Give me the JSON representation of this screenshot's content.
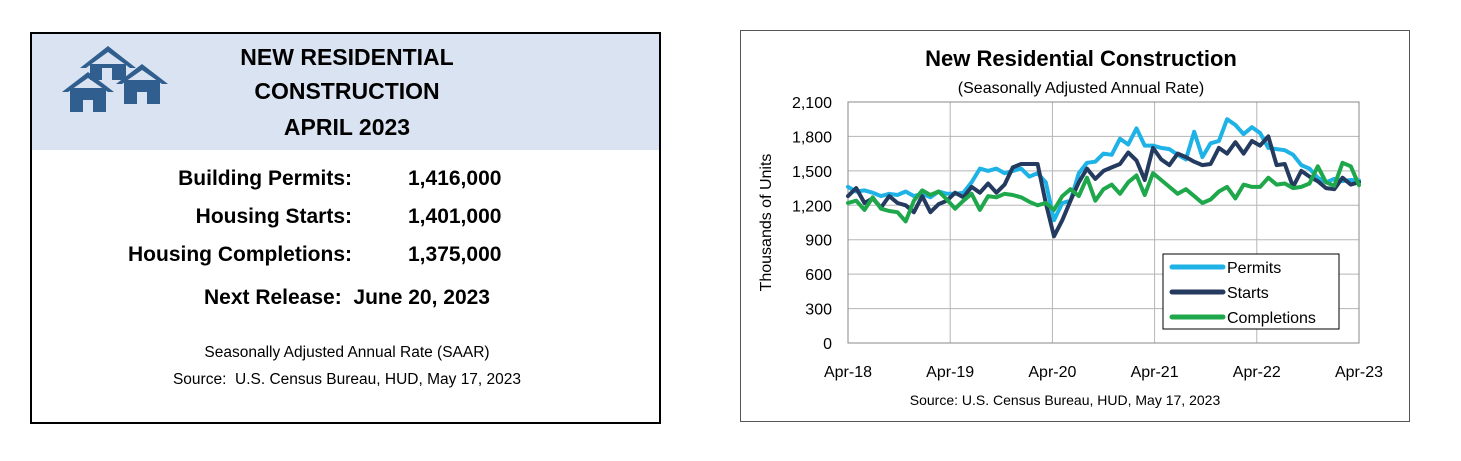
{
  "summary": {
    "title_lines": [
      "NEW RESIDENTIAL",
      "CONSTRUCTION",
      "APRIL 2023"
    ],
    "stats": [
      {
        "label": "Building Permits:",
        "value": "1,416,000"
      },
      {
        "label": "Housing Starts:",
        "value": "1,401,000"
      },
      {
        "label": "Housing Completions:",
        "value": "1,375,000"
      }
    ],
    "next_release": "Next Release:  June 20, 2023",
    "note1": "Seasonally Adjusted Annual Rate (SAAR)",
    "note2": "Source:  U.S. Census Bureau, HUD, May 17, 2023",
    "logo_icon": "houses-icon",
    "header_color": "#dae3f1",
    "logo_color": "#2f5e8f"
  },
  "chart_data": {
    "type": "line",
    "title": "New Residential Construction",
    "subtitle": "(Seasonally Adjusted Annual Rate)",
    "ylabel": "Thousands of Units",
    "source": "Source:  U.S. Census Bureau, HUD, May 17, 2023",
    "ylim": [
      0,
      2100
    ],
    "yticks": [
      0,
      300,
      600,
      900,
      1200,
      1500,
      1800,
      2100
    ],
    "ytick_labels": [
      "0",
      "300",
      "600",
      "900",
      "1,200",
      "1,500",
      "1,800",
      "2,100"
    ],
    "xticks": [
      "Apr-18",
      "Apr-19",
      "Apr-20",
      "Apr-21",
      "Apr-22",
      "Apr-23"
    ],
    "grid": true,
    "legend_position": "bottom-right",
    "x_start": "Apr-18",
    "x_end": "Apr-23",
    "series": [
      {
        "name": "Permits",
        "color": "#1fb2e6",
        "values": [
          1360,
          1320,
          1330,
          1310,
          1280,
          1300,
          1290,
          1320,
          1280,
          1300,
          1270,
          1320,
          1300,
          1300,
          1310,
          1400,
          1520,
          1500,
          1520,
          1480,
          1500,
          1520,
          1450,
          1480,
          1400,
          1070,
          1220,
          1240,
          1480,
          1570,
          1580,
          1650,
          1640,
          1780,
          1730,
          1870,
          1720,
          1720,
          1700,
          1690,
          1640,
          1600,
          1840,
          1620,
          1740,
          1760,
          1950,
          1900,
          1820,
          1880,
          1830,
          1700,
          1690,
          1680,
          1640,
          1550,
          1520,
          1440,
          1400,
          1430,
          1410,
          1420,
          1416
        ]
      },
      {
        "name": "Starts",
        "color": "#243a5e",
        "values": [
          1280,
          1350,
          1220,
          1260,
          1180,
          1280,
          1220,
          1200,
          1140,
          1280,
          1140,
          1210,
          1240,
          1310,
          1270,
          1360,
          1310,
          1390,
          1310,
          1380,
          1530,
          1560,
          1560,
          1560,
          1220,
          930,
          1070,
          1240,
          1400,
          1520,
          1430,
          1500,
          1530,
          1560,
          1660,
          1590,
          1420,
          1700,
          1600,
          1550,
          1650,
          1620,
          1580,
          1550,
          1560,
          1700,
          1650,
          1750,
          1650,
          1760,
          1720,
          1800,
          1550,
          1560,
          1360,
          1500,
          1450,
          1410,
          1350,
          1340,
          1440,
          1380,
          1401
        ]
      },
      {
        "name": "Completions",
        "color": "#1ea84b",
        "values": [
          1220,
          1240,
          1160,
          1270,
          1170,
          1150,
          1140,
          1060,
          1240,
          1330,
          1290,
          1320,
          1250,
          1170,
          1240,
          1300,
          1160,
          1280,
          1270,
          1300,
          1290,
          1270,
          1230,
          1200,
          1220,
          1160,
          1280,
          1340,
          1280,
          1440,
          1240,
          1340,
          1380,
          1300,
          1400,
          1460,
          1290,
          1480,
          1420,
          1360,
          1300,
          1340,
          1280,
          1220,
          1250,
          1320,
          1360,
          1260,
          1380,
          1360,
          1360,
          1440,
          1380,
          1390,
          1350,
          1360,
          1390,
          1540,
          1400,
          1370,
          1570,
          1540,
          1375
        ]
      }
    ]
  }
}
